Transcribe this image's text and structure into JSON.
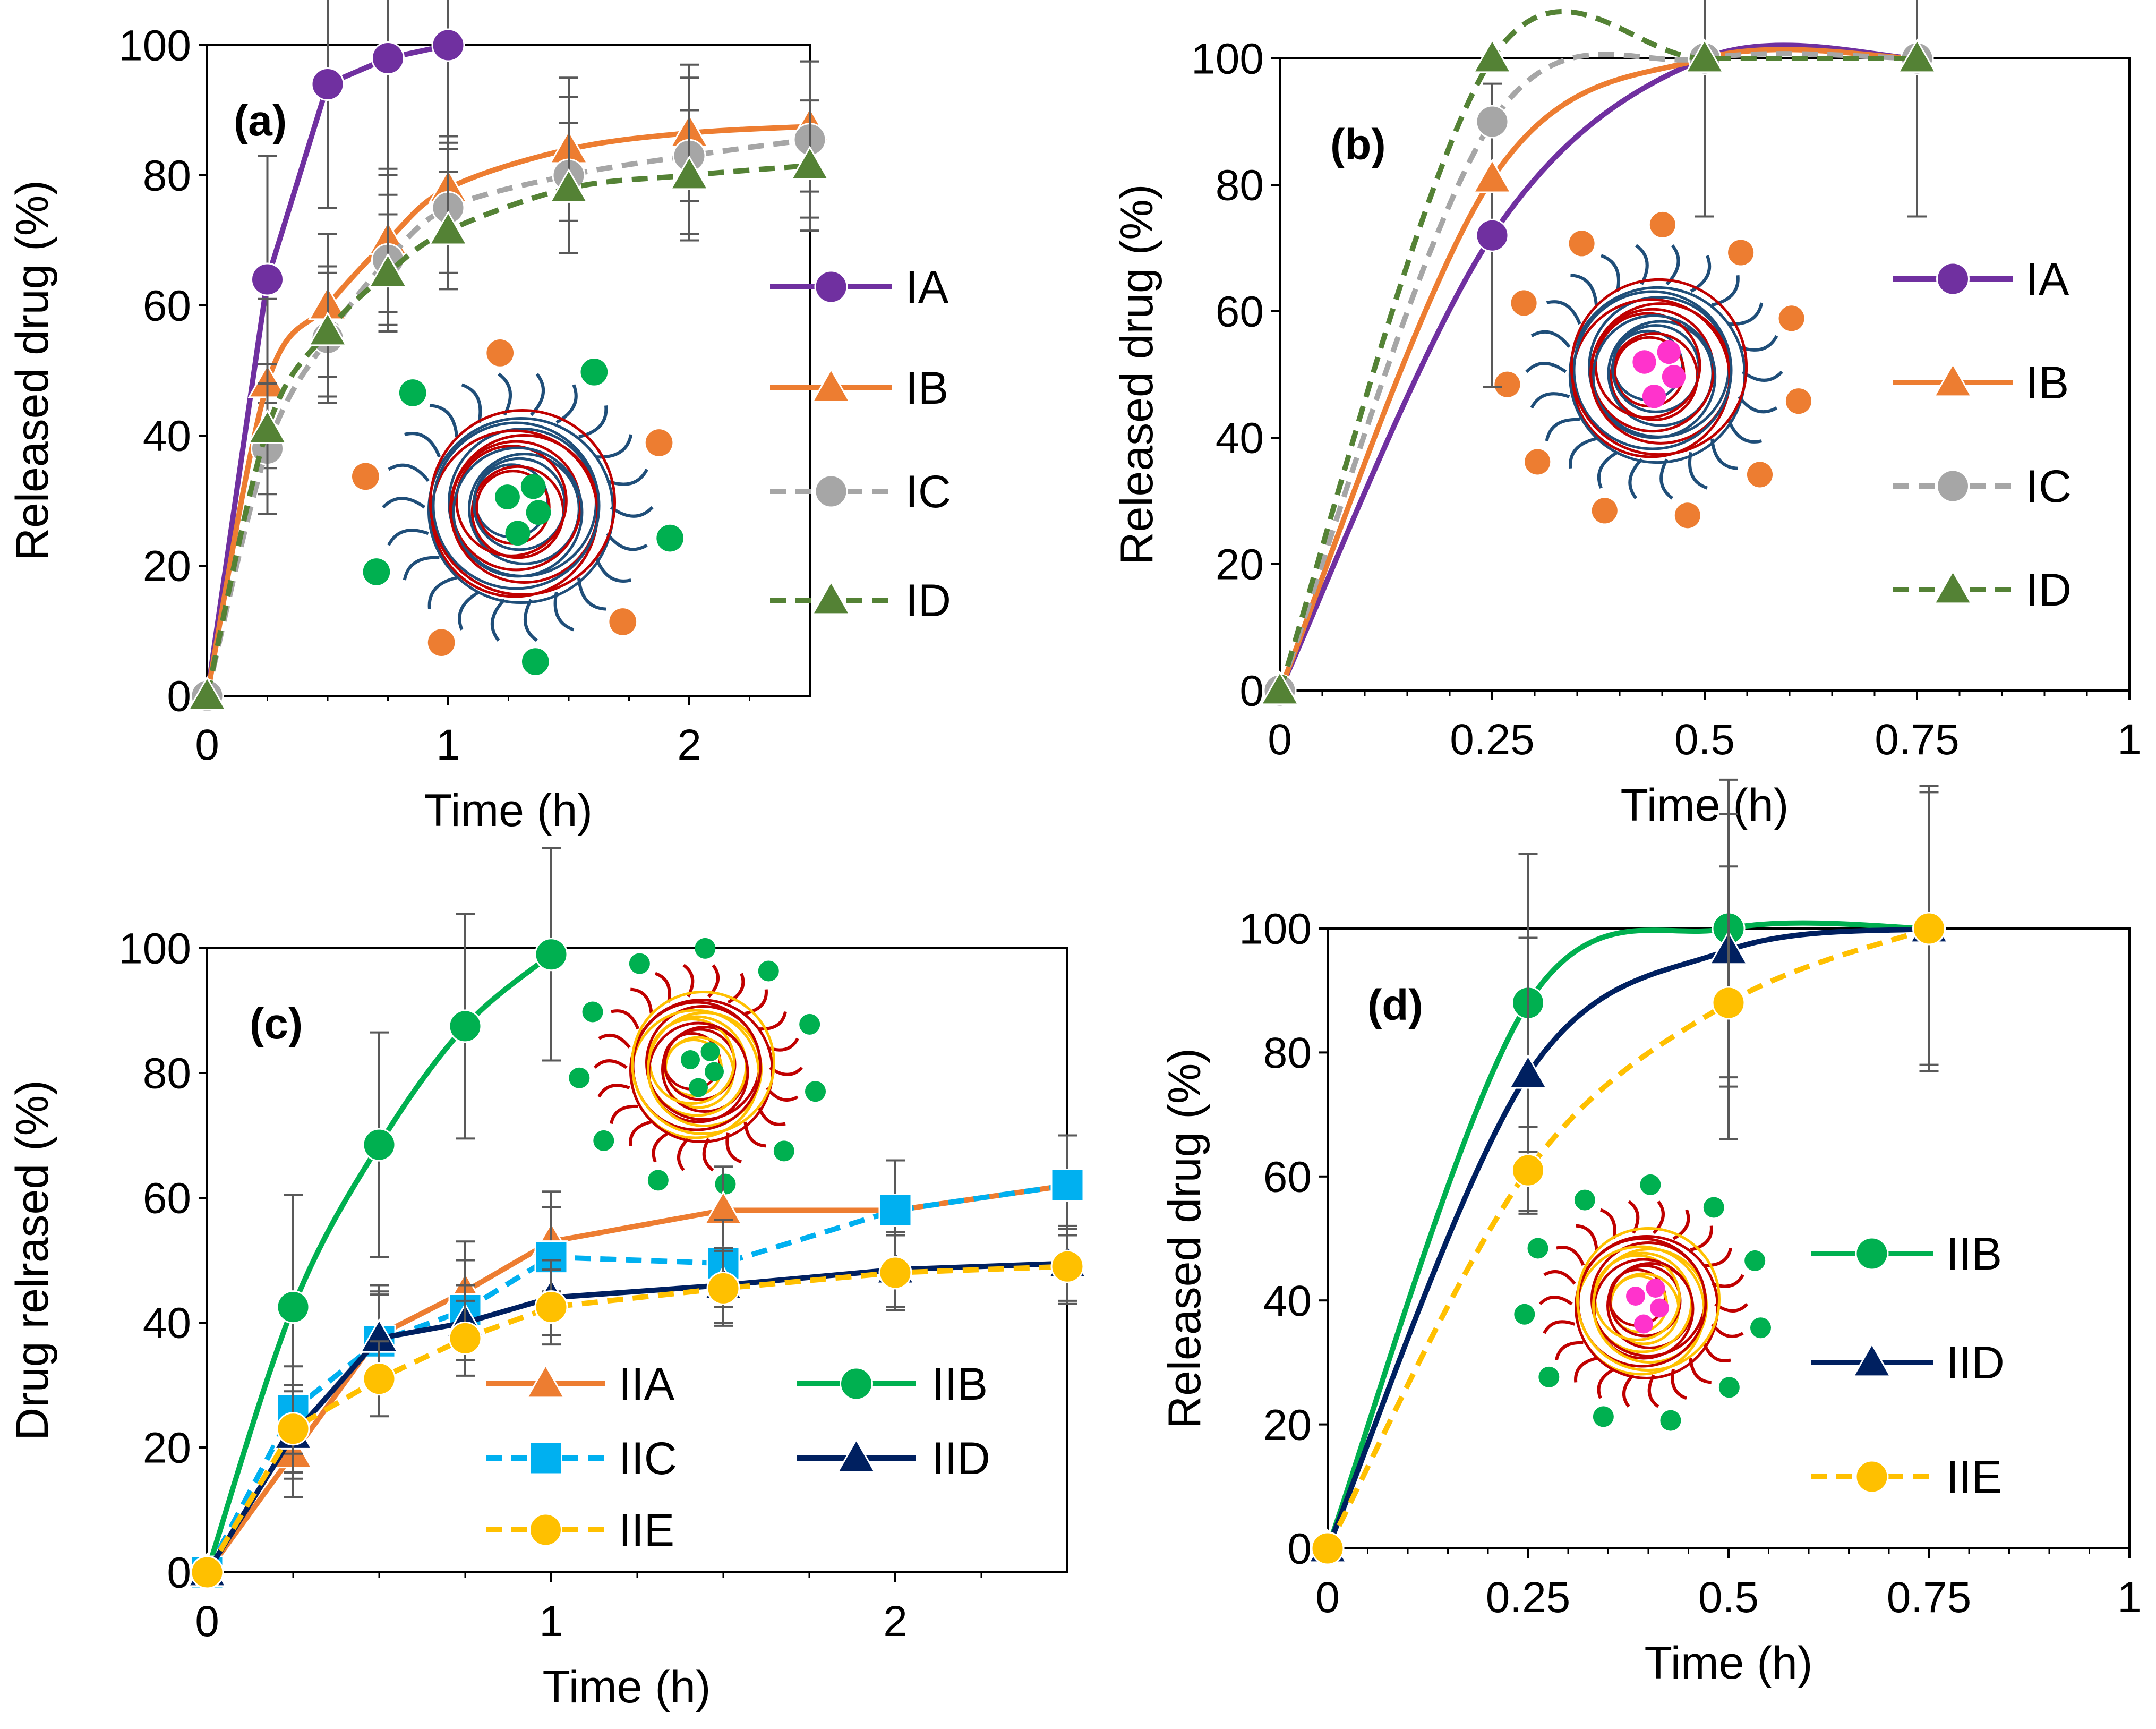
{
  "figure": {
    "panels": [
      {
        "label": "(a)",
        "xlabel": "Time (h)",
        "ylabel": "Released drug (%)",
        "legend_placement": "right",
        "legend_layout": "one-column",
        "inset_drug_color": "green"
      },
      {
        "label": "(b)",
        "xlabel": "Time (h)",
        "ylabel": "Released drug (%)",
        "legend_placement": "right",
        "legend_layout": "one-column",
        "inset_drug_color": "pink"
      },
      {
        "label": "(c)",
        "xlabel": "Time (h)",
        "ylabel": "Drug relrased (%)",
        "legend_placement": "bottom-center",
        "legend_layout": "two-column",
        "inset_drug_color": "green"
      },
      {
        "label": "(d)",
        "xlabel": "Time (h)",
        "ylabel": "Released drug (%)",
        "legend_placement": "bottom-right",
        "legend_layout": "one-column",
        "inset_drug_color": "pink"
      }
    ]
  },
  "colors": {
    "IA": "#7030a0",
    "IB": "#ed7d31",
    "IC": "#a6a6a6",
    "ID": "#548235",
    "IIA": "#ed7d31",
    "IIB": "#00b050",
    "IIC": "#00b0f0",
    "IID": "#002060",
    "IIE": "#ffc000",
    "error_bar": "#595959",
    "micelle_blue": "#1f4e79",
    "micelle_red": "#c00000",
    "micelle_gold": "#ffc000",
    "drug_orange": "#ed7d31",
    "drug_green": "#00b050",
    "drug_pink": "#ff33cc"
  },
  "chart_data": [
    {
      "type": "line",
      "xlim": [
        0,
        2.5
      ],
      "ylim": [
        0,
        100
      ],
      "xticks": [
        0,
        1,
        2
      ],
      "yticks": [
        0,
        20,
        40,
        60,
        80,
        100
      ],
      "grid": false,
      "series": [
        {
          "name": "IA",
          "marker": "circle",
          "dash": "solid",
          "smooth": false,
          "x": [
            0,
            0.25,
            0.5,
            0.75,
            1
          ],
          "y": [
            0,
            64,
            94,
            98,
            100
          ],
          "err": [
            0,
            19,
            19,
            18,
            16
          ]
        },
        {
          "name": "IB",
          "marker": "triangle",
          "dash": "solid",
          "smooth": true,
          "x": [
            0,
            0.25,
            0.5,
            0.75,
            1,
            1.5,
            2,
            2.5
          ],
          "y": [
            0,
            48,
            60,
            70,
            78,
            84,
            86.5,
            87.5
          ],
          "err": [
            0,
            13,
            11,
            11,
            8,
            11,
            10.5,
            10
          ]
        },
        {
          "name": "IC",
          "marker": "circle",
          "dash": "dash",
          "smooth": true,
          "x": [
            0,
            0.25,
            0.5,
            0.75,
            1,
            1.5,
            2,
            2.5
          ],
          "y": [
            0,
            38,
            55,
            67,
            75,
            80,
            83,
            85.5
          ],
          "err": [
            0,
            10,
            10,
            10,
            10,
            12,
            12,
            12
          ]
        },
        {
          "name": "ID",
          "marker": "triangle",
          "dash": "dash",
          "smooth": true,
          "x": [
            0,
            0.25,
            0.5,
            0.75,
            1,
            1.5,
            2,
            2.5
          ],
          "y": [
            0,
            41,
            56,
            65,
            71.5,
            78,
            80,
            81.5
          ],
          "err": [
            0,
            10,
            10,
            9,
            9,
            10,
            10,
            10
          ]
        }
      ]
    },
    {
      "type": "line",
      "xlim": [
        0,
        1
      ],
      "ylim": [
        0,
        100
      ],
      "xticks": [
        0,
        0.25,
        0.5,
        0.75,
        1
      ],
      "yticks": [
        0,
        20,
        40,
        60,
        80,
        100
      ],
      "grid": false,
      "series": [
        {
          "name": "IA",
          "marker": "circle",
          "dash": "solid",
          "smooth": true,
          "x": [
            0,
            0.25,
            0.5,
            0.75
          ],
          "y": [
            0,
            72,
            100,
            100
          ],
          "err": [
            0,
            24,
            25,
            25
          ]
        },
        {
          "name": "IB",
          "marker": "triangle",
          "dash": "solid",
          "smooth": true,
          "x": [
            0,
            0.25,
            0.5,
            0.75
          ],
          "y": [
            0,
            81,
            100,
            100
          ],
          "err": [
            0,
            0,
            0,
            0
          ]
        },
        {
          "name": "IC",
          "marker": "circle",
          "dash": "dash",
          "smooth": true,
          "x": [
            0,
            0.25,
            0.5,
            0.75
          ],
          "y": [
            0,
            90,
            100,
            100
          ],
          "err": [
            0,
            0,
            0,
            0
          ]
        },
        {
          "name": "ID",
          "marker": "triangle",
          "dash": "dash",
          "smooth": true,
          "x": [
            0,
            0.25,
            0.5,
            0.75
          ],
          "y": [
            0,
            100,
            100,
            100
          ],
          "err": [
            0,
            0,
            0,
            0
          ]
        }
      ]
    },
    {
      "type": "line",
      "xlim": [
        0,
        2.5
      ],
      "ylim": [
        0,
        100
      ],
      "xticks": [
        0,
        1,
        2
      ],
      "yticks": [
        0,
        20,
        40,
        60,
        80,
        100
      ],
      "grid": false,
      "series": [
        {
          "name": "IIA",
          "marker": "triangle",
          "dash": "solid",
          "smooth": false,
          "x": [
            0,
            0.25,
            0.5,
            0.75,
            1,
            1.5,
            2,
            2.5
          ],
          "y": [
            0,
            19,
            38,
            45,
            53,
            58,
            58,
            62
          ],
          "err": [
            0,
            7,
            8,
            8,
            8,
            7,
            8,
            8
          ]
        },
        {
          "name": "IIB",
          "marker": "circle",
          "dash": "solid",
          "smooth": true,
          "x": [
            0,
            0.25,
            0.5,
            0.75,
            1
          ],
          "y": [
            0,
            42.5,
            68.5,
            87.5,
            99
          ],
          "err": [
            0,
            18,
            18,
            18,
            17
          ]
        },
        {
          "name": "IIC",
          "marker": "square",
          "dash": "dash",
          "smooth": false,
          "x": [
            0,
            0.25,
            0.5,
            0.75,
            1,
            1.5,
            2,
            2.5
          ],
          "y": [
            0,
            26,
            37,
            42,
            50.5,
            49.5,
            58,
            62
          ],
          "err": [
            0,
            7,
            8,
            8,
            8,
            7,
            8,
            8
          ]
        },
        {
          "name": "IID",
          "marker": "triangle",
          "dash": "solid",
          "smooth": false,
          "x": [
            0,
            0.25,
            0.5,
            0.75,
            1,
            1.5,
            2,
            2.5
          ],
          "y": [
            0,
            22,
            37.5,
            40,
            44,
            46,
            48.5,
            49.5
          ],
          "err": [
            0,
            7,
            7,
            6,
            6,
            6,
            6,
            6
          ]
        },
        {
          "name": "IIE",
          "marker": "circle",
          "dash": "dash",
          "smooth": false,
          "x": [
            0,
            0.25,
            0.5,
            0.75,
            1,
            1.5,
            2,
            2.5
          ],
          "y": [
            0,
            23,
            31,
            37.5,
            42.5,
            45.5,
            48,
            49
          ],
          "err": [
            0,
            7,
            6,
            6,
            6,
            6,
            6,
            6
          ]
        }
      ]
    },
    {
      "type": "line",
      "xlim": [
        0,
        1
      ],
      "ylim": [
        0,
        100
      ],
      "xticks": [
        0,
        0.25,
        0.5,
        0.75,
        1
      ],
      "yticks": [
        0,
        20,
        40,
        60,
        80,
        100
      ],
      "grid": false,
      "series": [
        {
          "name": "IIB",
          "marker": "circle",
          "dash": "solid",
          "smooth": true,
          "x": [
            0,
            0.25,
            0.5,
            0.75
          ],
          "y": [
            0,
            88,
            100,
            100
          ],
          "err": [
            0,
            24,
            24,
            23
          ]
        },
        {
          "name": "IID",
          "marker": "triangle",
          "dash": "solid",
          "smooth": true,
          "x": [
            0,
            0.25,
            0.5,
            0.75
          ],
          "y": [
            0,
            76.5,
            96.5,
            100
          ],
          "err": [
            0,
            22,
            22,
            22
          ]
        },
        {
          "name": "IIE",
          "marker": "circle",
          "dash": "dash",
          "smooth": true,
          "x": [
            0,
            0.25,
            0.5,
            0.75
          ],
          "y": [
            0,
            61,
            88,
            100
          ],
          "err": [
            0,
            7,
            22,
            22
          ]
        }
      ]
    }
  ]
}
